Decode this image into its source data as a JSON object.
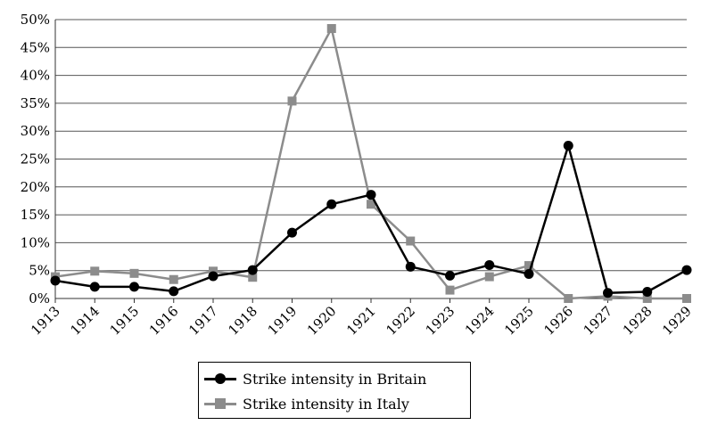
{
  "chart_data": {
    "type": "line",
    "title": "",
    "xlabel": "",
    "ylabel": "",
    "x": [
      "1913",
      "1914",
      "1915",
      "1916",
      "1917",
      "1918",
      "1919",
      "1920",
      "1921",
      "1922",
      "1923",
      "1924",
      "1925",
      "1926",
      "1927",
      "1928",
      "1929"
    ],
    "ylim": [
      0,
      50
    ],
    "yticks": [
      "0%",
      "5%",
      "10%",
      "15%",
      "20%",
      "25%",
      "30%",
      "35%",
      "40%",
      "45%",
      "50%"
    ],
    "grid": true,
    "legend_position": "bottom",
    "series": [
      {
        "name": "Strike intensity in Britain",
        "color": "#000000",
        "marker": "circle",
        "values": [
          3.2,
          2.1,
          2.1,
          1.3,
          4.0,
          5.1,
          11.8,
          16.9,
          18.6,
          5.7,
          4.1,
          6.0,
          4.4,
          27.4,
          1.0,
          1.2,
          5.1
        ]
      },
      {
        "name": "Strike intensity in Italy",
        "color": "#8c8c8c",
        "marker": "square",
        "values": [
          3.9,
          4.9,
          4.5,
          3.4,
          4.9,
          3.8,
          35.4,
          48.4,
          16.9,
          10.3,
          1.5,
          3.9,
          5.9,
          0.0,
          0.4,
          0.0,
          0.0
        ]
      }
    ]
  }
}
